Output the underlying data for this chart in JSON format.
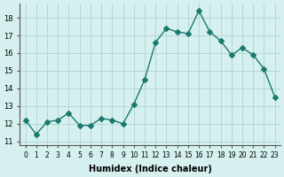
{
  "x": [
    0,
    1,
    2,
    3,
    4,
    5,
    6,
    7,
    8,
    9,
    10,
    11,
    12,
    13,
    14,
    15,
    16,
    17,
    18,
    19,
    20,
    21,
    22,
    23
  ],
  "y": [
    12.2,
    11.4,
    12.1,
    12.2,
    12.6,
    11.9,
    11.9,
    12.3,
    12.2,
    12.0,
    13.1,
    14.5,
    16.6,
    17.4,
    17.2,
    17.1,
    18.4,
    17.2,
    16.7,
    15.9,
    16.3,
    15.9,
    15.1,
    13.5
  ],
  "line_color": "#1a7a6e",
  "marker": "D",
  "marker_size": 3,
  "bg_color": "#d6f0ef",
  "grid_color": "#b0d8d5",
  "xlabel": "Humidex (Indice chaleur)",
  "ylabel_ticks": [
    11,
    12,
    13,
    14,
    15,
    16,
    17,
    18
  ],
  "xlim": [
    -0.5,
    23.5
  ],
  "ylim": [
    10.8,
    18.8
  ]
}
